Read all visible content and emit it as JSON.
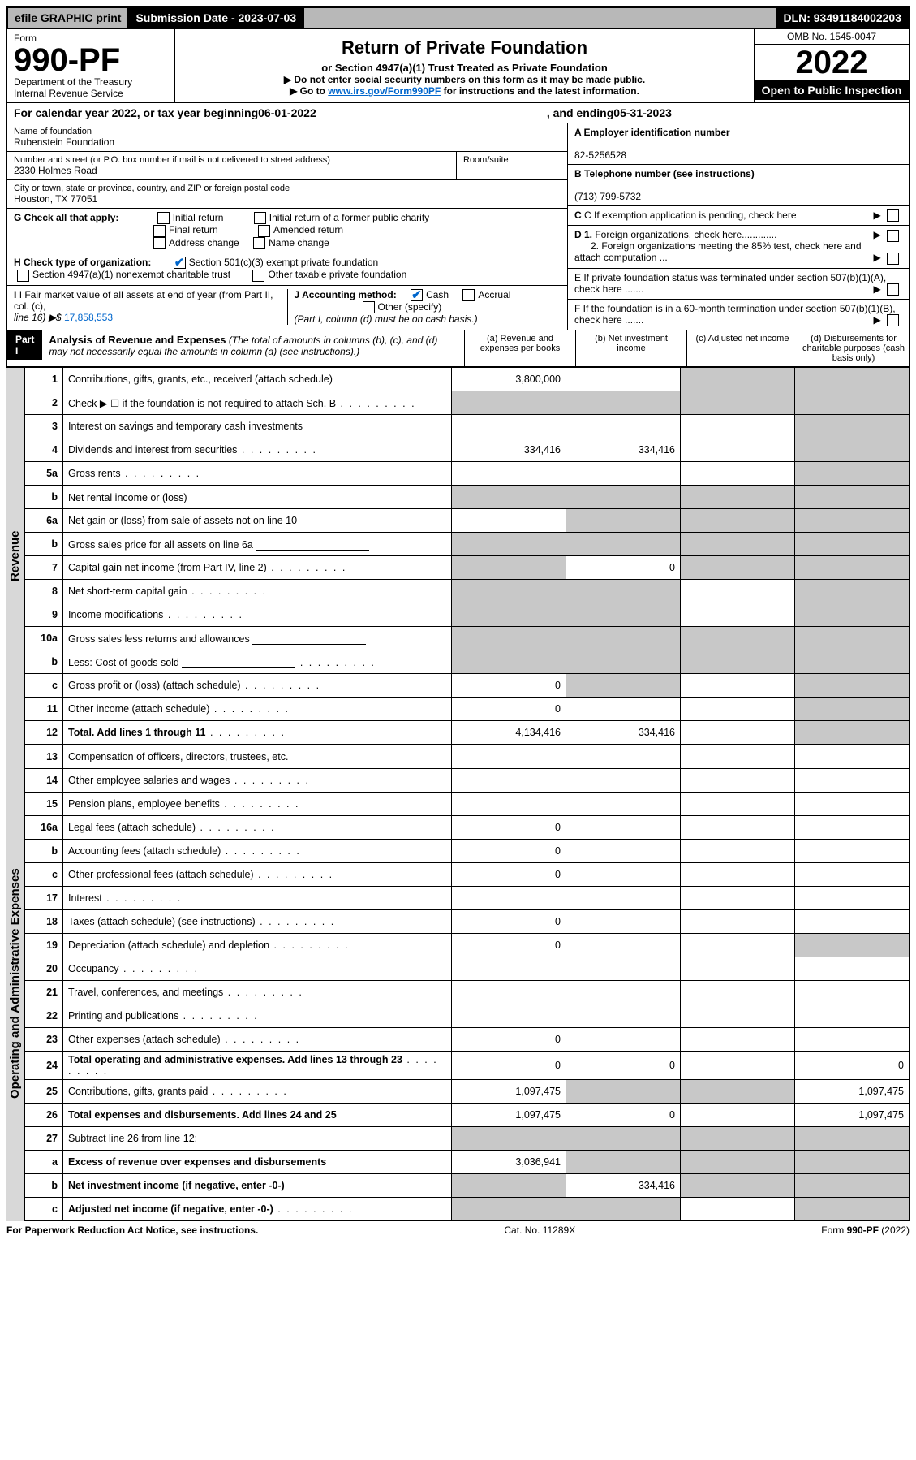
{
  "topbar": {
    "efile": "efile GRAPHIC print",
    "subdate_label": "Submission Date - ",
    "subdate": "2023-07-03",
    "dln_label": "DLN: ",
    "dln": "93491184002203"
  },
  "header": {
    "form_word": "Form",
    "form_no": "990-PF",
    "dept": "Department of the Treasury",
    "irs": "Internal Revenue Service",
    "title": "Return of Private Foundation",
    "subtitle": "or Section 4947(a)(1) Trust Treated as Private Foundation",
    "instr1": "▶ Do not enter social security numbers on this form as it may be made public.",
    "instr2_pre": "▶ Go to ",
    "instr2_link": "www.irs.gov/Form990PF",
    "instr2_post": " for instructions and the latest information.",
    "omb": "OMB No. 1545-0047",
    "year": "2022",
    "open": "Open to Public Inspection"
  },
  "calendar": {
    "pre": "For calendar year 2022, or tax year beginning ",
    "begin": "06-01-2022",
    "mid": ", and ending ",
    "end": "05-31-2023"
  },
  "entity": {
    "name_label": "Name of foundation",
    "name": "Rubenstein Foundation",
    "addr_label": "Number and street (or P.O. box number if mail is not delivered to street address)",
    "room_label": "Room/suite",
    "addr": "2330 Holmes Road",
    "city_label": "City or town, state or province, country, and ZIP or foreign postal code",
    "city": "Houston, TX  77051",
    "ein_label": "A Employer identification number",
    "ein": "82-5256528",
    "phone_label": "B Telephone number (see instructions)",
    "phone": "(713) 799-5732",
    "c_label": "C If exemption application is pending, check here",
    "d1_label": "D 1. Foreign organizations, check here.............",
    "d2_label": "2. Foreign organizations meeting the 85% test, check here and attach computation ...",
    "e_label": "E  If private foundation status was terminated under section 507(b)(1)(A), check here .......",
    "f_label": "F  If the foundation is in a 60-month termination under section 507(b)(1)(B), check here .......",
    "g_label": "G Check all that apply:",
    "g_opts": [
      "Initial return",
      "Initial return of a former public charity",
      "Final return",
      "Amended return",
      "Address change",
      "Name change"
    ],
    "h_label": "H Check type of organization:",
    "h_opts": [
      "Section 501(c)(3) exempt private foundation",
      "Section 4947(a)(1) nonexempt charitable trust",
      "Other taxable private foundation"
    ],
    "i_label": "I Fair market value of all assets at end of year (from Part II, col. (c),",
    "i_line": "line 16) ▶$  ",
    "i_val": "17,858,553",
    "j_label": "J Accounting method:",
    "j_opts": [
      "Cash",
      "Accrual",
      "Other (specify)"
    ],
    "j_note": "(Part I, column (d) must be on cash basis.)"
  },
  "part1": {
    "hdr": "Part I",
    "title": "Analysis of Revenue and Expenses",
    "title_note": " (The total of amounts in columns (b), (c), and (d) may not necessarily equal the amounts in column (a) (see instructions).)",
    "cols": {
      "a": "(a)  Revenue and expenses per books",
      "b": "(b)  Net investment income",
      "c": "(c)  Adjusted net income",
      "d": "(d)  Disbursements for charitable purposes (cash basis only)"
    }
  },
  "sections": {
    "revenue": "Revenue",
    "expenses": "Operating and Administrative Expenses"
  },
  "rows": [
    {
      "n": "1",
      "d": "Contributions, gifts, grants, etc., received (attach schedule)",
      "a": "3,800,000",
      "b": "",
      "c": "grey",
      "dcol": "grey"
    },
    {
      "n": "2",
      "d": "Check ▶ ☐ if the foundation is not required to attach Sch. B",
      "dots": true,
      "a": "grey",
      "b": "grey",
      "c": "grey",
      "dcol": "grey"
    },
    {
      "n": "3",
      "d": "Interest on savings and temporary cash investments",
      "a": "",
      "b": "",
      "c": "",
      "dcol": "grey"
    },
    {
      "n": "4",
      "d": "Dividends and interest from securities",
      "dots": true,
      "a": "334,416",
      "b": "334,416",
      "c": "",
      "dcol": "grey"
    },
    {
      "n": "5a",
      "d": "Gross rents",
      "dots": true,
      "a": "",
      "b": "",
      "c": "",
      "dcol": "grey"
    },
    {
      "n": "b",
      "d": "Net rental income or (loss)",
      "line": true,
      "a": "grey",
      "b": "grey",
      "c": "grey",
      "dcol": "grey"
    },
    {
      "n": "6a",
      "d": "Net gain or (loss) from sale of assets not on line 10",
      "a": "",
      "b": "grey",
      "c": "grey",
      "dcol": "grey"
    },
    {
      "n": "b",
      "d": "Gross sales price for all assets on line 6a",
      "line": true,
      "a": "grey",
      "b": "grey",
      "c": "grey",
      "dcol": "grey"
    },
    {
      "n": "7",
      "d": "Capital gain net income (from Part IV, line 2)",
      "dots": true,
      "a": "grey",
      "b": "0",
      "c": "grey",
      "dcol": "grey"
    },
    {
      "n": "8",
      "d": "Net short-term capital gain",
      "dots": true,
      "a": "grey",
      "b": "grey",
      "c": "",
      "dcol": "grey"
    },
    {
      "n": "9",
      "d": "Income modifications",
      "dots": true,
      "a": "grey",
      "b": "grey",
      "c": "",
      "dcol": "grey"
    },
    {
      "n": "10a",
      "d": "Gross sales less returns and allowances",
      "line": true,
      "a": "grey",
      "b": "grey",
      "c": "grey",
      "dcol": "grey"
    },
    {
      "n": "b",
      "d": "Less: Cost of goods sold",
      "dots": true,
      "line": true,
      "a": "grey",
      "b": "grey",
      "c": "grey",
      "dcol": "grey"
    },
    {
      "n": "c",
      "d": "Gross profit or (loss) (attach schedule)",
      "dots": true,
      "a": "0",
      "b": "grey",
      "c": "",
      "dcol": "grey"
    },
    {
      "n": "11",
      "d": "Other income (attach schedule)",
      "dots": true,
      "a": "0",
      "b": "",
      "c": "",
      "dcol": "grey"
    },
    {
      "n": "12",
      "d": "Total. Add lines 1 through 11",
      "dots": true,
      "bold": true,
      "a": "4,134,416",
      "b": "334,416",
      "c": "",
      "dcol": "grey"
    }
  ],
  "exp_rows": [
    {
      "n": "13",
      "d": "Compensation of officers, directors, trustees, etc.",
      "a": "",
      "b": "",
      "c": "",
      "dcol": ""
    },
    {
      "n": "14",
      "d": "Other employee salaries and wages",
      "dots": true,
      "a": "",
      "b": "",
      "c": "",
      "dcol": ""
    },
    {
      "n": "15",
      "d": "Pension plans, employee benefits",
      "dots": true,
      "a": "",
      "b": "",
      "c": "",
      "dcol": ""
    },
    {
      "n": "16a",
      "d": "Legal fees (attach schedule)",
      "dots": true,
      "a": "0",
      "b": "",
      "c": "",
      "dcol": ""
    },
    {
      "n": "b",
      "d": "Accounting fees (attach schedule)",
      "dots": true,
      "a": "0",
      "b": "",
      "c": "",
      "dcol": ""
    },
    {
      "n": "c",
      "d": "Other professional fees (attach schedule)",
      "dots": true,
      "a": "0",
      "b": "",
      "c": "",
      "dcol": ""
    },
    {
      "n": "17",
      "d": "Interest",
      "dots": true,
      "a": "",
      "b": "",
      "c": "",
      "dcol": ""
    },
    {
      "n": "18",
      "d": "Taxes (attach schedule) (see instructions)",
      "dots": true,
      "a": "0",
      "b": "",
      "c": "",
      "dcol": ""
    },
    {
      "n": "19",
      "d": "Depreciation (attach schedule) and depletion",
      "dots": true,
      "a": "0",
      "b": "",
      "c": "",
      "dcol": "grey"
    },
    {
      "n": "20",
      "d": "Occupancy",
      "dots": true,
      "a": "",
      "b": "",
      "c": "",
      "dcol": ""
    },
    {
      "n": "21",
      "d": "Travel, conferences, and meetings",
      "dots": true,
      "a": "",
      "b": "",
      "c": "",
      "dcol": ""
    },
    {
      "n": "22",
      "d": "Printing and publications",
      "dots": true,
      "a": "",
      "b": "",
      "c": "",
      "dcol": ""
    },
    {
      "n": "23",
      "d": "Other expenses (attach schedule)",
      "dots": true,
      "a": "0",
      "b": "",
      "c": "",
      "dcol": ""
    },
    {
      "n": "24",
      "d": "Total operating and administrative expenses. Add lines 13 through 23",
      "dots": true,
      "bold": true,
      "a": "0",
      "b": "0",
      "c": "",
      "dcol": "0"
    },
    {
      "n": "25",
      "d": "Contributions, gifts, grants paid",
      "dots": true,
      "a": "1,097,475",
      "b": "grey",
      "c": "grey",
      "dcol": "1,097,475"
    },
    {
      "n": "26",
      "d": "Total expenses and disbursements. Add lines 24 and 25",
      "bold": true,
      "a": "1,097,475",
      "b": "0",
      "c": "",
      "dcol": "1,097,475"
    },
    {
      "n": "27",
      "d": "Subtract line 26 from line 12:",
      "a": "grey",
      "b": "grey",
      "c": "grey",
      "dcol": "grey"
    },
    {
      "n": "a",
      "d": "Excess of revenue over expenses and disbursements",
      "bold": true,
      "a": "3,036,941",
      "b": "grey",
      "c": "grey",
      "dcol": "grey"
    },
    {
      "n": "b",
      "d": "Net investment income (if negative, enter -0-)",
      "bold": true,
      "a": "grey",
      "b": "334,416",
      "c": "grey",
      "dcol": "grey"
    },
    {
      "n": "c",
      "d": "Adjusted net income (if negative, enter -0-)",
      "dots": true,
      "bold": true,
      "a": "grey",
      "b": "grey",
      "c": "",
      "dcol": "grey"
    }
  ],
  "footer": {
    "left": "For Paperwork Reduction Act Notice, see instructions.",
    "mid": "Cat. No. 11289X",
    "right": "Form 990-PF (2022)"
  }
}
